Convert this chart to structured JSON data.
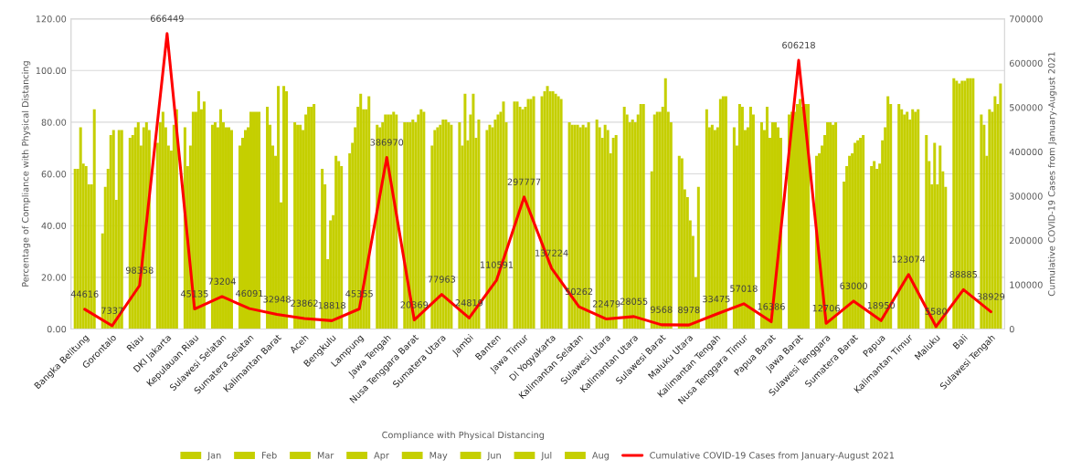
{
  "chart_data": {
    "type": "bar",
    "xlabel": "Compliance with Physical Distancing",
    "ylabel": "Percentage of Compliance with Physical Distancing",
    "y2label": "Cumulative COVID-19 Cases from January-August 2021",
    "categories": [
      "Bangka Belitung",
      "Gorontalo",
      "Riau",
      "DKI Jakarta",
      "Kepulauan Riau",
      "Sulawesi Selatan",
      "Sumatera Selatan",
      "Kalimantan Barat",
      "Aceh",
      "Bengkulu",
      "Lampung",
      "Jawa Tengah",
      "Nusa Tenggara Barat",
      "Sumatera Utara",
      "Jambi",
      "Banten",
      "Jawa Timur",
      "DI Yogyakarta",
      "Kalimantan Selatan",
      "Sulawesi Utara",
      "Kalimantan Utara",
      "Sulawesi Barat",
      "Maluku Utara",
      "Kalimantan Tengah",
      "Nusa Tenggara Timur",
      "Papua Barat",
      "Jawa Barat",
      "Sulawesi Tenggara",
      "Sumatera Barat",
      "Papua",
      "Kalimantan Timur",
      "Maluku",
      "Bali",
      "Sulawesi Tengah"
    ],
    "series": [
      {
        "name": "Jan",
        "color": "#c5cf00",
        "values": [
          62,
          37,
          74,
          72,
          78,
          79,
          71,
          86,
          80,
          62,
          68,
          79,
          80,
          71,
          80,
          77,
          88,
          90,
          80,
          81,
          86,
          61,
          67,
          85,
          78,
          80,
          83,
          67,
          57,
          63,
          87,
          75,
          97,
          83
        ]
      },
      {
        "name": "Feb",
        "color": "#c5cf00",
        "values": [
          62,
          55,
          75,
          80,
          63,
          80,
          74,
          79,
          79,
          56,
          72,
          78,
          80,
          77,
          71,
          79,
          88,
          92,
          79,
          78,
          83,
          83,
          66,
          78,
          71,
          77,
          84,
          68,
          63,
          65,
          85,
          65,
          96,
          79
        ]
      },
      {
        "name": "Mar",
        "color": "#c5cf00",
        "values": [
          78,
          62,
          78,
          84,
          71,
          78,
          77,
          71,
          79,
          27,
          78,
          80,
          80,
          78,
          91,
          78,
          86,
          94,
          79,
          74,
          80,
          84,
          54,
          79,
          87,
          86,
          84,
          71,
          67,
          62,
          83,
          56,
          95,
          67
        ]
      },
      {
        "name": "Apr",
        "color": "#c5cf00",
        "values": [
          64,
          75,
          80,
          78,
          84,
          85,
          78,
          67,
          77,
          42,
          86,
          83,
          81,
          79,
          73,
          81,
          85,
          92,
          79,
          79,
          81,
          84,
          51,
          77,
          86,
          74,
          87,
          75,
          68,
          64,
          84,
          72,
          96,
          85
        ]
      },
      {
        "name": "May",
        "color": "#c5cf00",
        "values": [
          63,
          77,
          71,
          71,
          84,
          80,
          84,
          94,
          83,
          44,
          91,
          83,
          80,
          81,
          83,
          83,
          86,
          92,
          78,
          77,
          80,
          86,
          42,
          78,
          77,
          80,
          89,
          80,
          72,
          73,
          81,
          56,
          96,
          84
        ]
      },
      {
        "name": "Jun",
        "color": "#c5cf00",
        "values": [
          56,
          50,
          78,
          69,
          92,
          78,
          84,
          49,
          86,
          67,
          85,
          83,
          83,
          81,
          91,
          84,
          89,
          91,
          79,
          68,
          83,
          97,
          36,
          89,
          78,
          80,
          86,
          80,
          73,
          78,
          85,
          71,
          97,
          90
        ]
      },
      {
        "name": "Jul",
        "color": "#c5cf00",
        "values": [
          56,
          77,
          80,
          79,
          85,
          78,
          84,
          94,
          86,
          65,
          85,
          84,
          85,
          80,
          74,
          88,
          89,
          90,
          78,
          74,
          87,
          84,
          20,
          90,
          86,
          78,
          87,
          79,
          74,
          90,
          84,
          61,
          97,
          87
        ]
      },
      {
        "name": "Aug",
        "color": "#c5cf00",
        "values": [
          85,
          77,
          77,
          85,
          88,
          77,
          84,
          92,
          87,
          63,
          90,
          83,
          84,
          79,
          81,
          80,
          90,
          89,
          80,
          75,
          87,
          80,
          55,
          90,
          83,
          74,
          87,
          80,
          75,
          87,
          85,
          55,
          97,
          95
        ]
      },
      {
        "name": "Cumulative COVID-19 Cases from January-August 2021",
        "type": "line",
        "axis": "y2",
        "color": "#ff0000",
        "values": [
          44616,
          7337,
          98358,
          666449,
          45135,
          73204,
          46091,
          32948,
          23862,
          18818,
          45355,
          386970,
          20369,
          77963,
          24819,
          110591,
          297777,
          137224,
          50262,
          22479,
          28055,
          9568,
          8978,
          33475,
          57018,
          16386,
          606218,
          12706,
          63000,
          18950,
          123074,
          5580,
          88885,
          38929
        ],
        "value_labels": [
          "44616",
          "7337",
          "98358",
          "666449",
          "45135",
          "73204",
          "46091",
          "32948",
          "23862",
          "18818",
          "45355",
          "386970",
          "20369",
          "77963",
          "24819",
          "110591",
          "297777",
          "137224",
          "50262",
          "22479",
          "28055",
          "9568",
          "8978",
          "33475",
          "57018",
          "16386",
          "606218",
          "12706",
          "63000",
          "18950",
          "123074",
          "5580",
          "88885",
          "38929"
        ]
      }
    ],
    "ylim": [
      0,
      120
    ],
    "yticks": [
      {
        "value": 0,
        "label": "0.00"
      },
      {
        "value": 20,
        "label": "20.00"
      },
      {
        "value": 40,
        "label": "40.00"
      },
      {
        "value": 60,
        "label": "60.00"
      },
      {
        "value": 80,
        "label": "80.00"
      },
      {
        "value": 100,
        "label": "100.00"
      },
      {
        "value": 120,
        "label": "120.00"
      }
    ],
    "y2lim": [
      0,
      700000
    ],
    "y2ticks": [
      0,
      100000,
      200000,
      300000,
      400000,
      500000,
      600000,
      700000
    ],
    "grid": "y",
    "legend": "bottom",
    "marker": "none",
    "line_style": "solid"
  }
}
